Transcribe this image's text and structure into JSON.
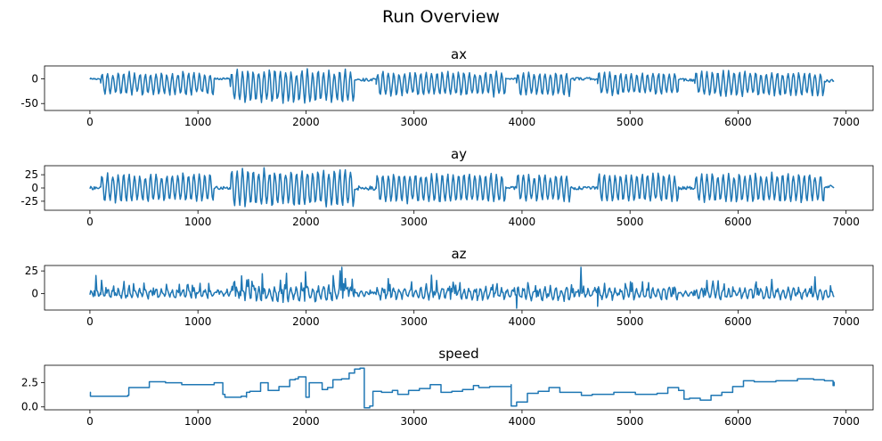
{
  "figure": {
    "title": "Run Overview"
  },
  "chart_data": [
    {
      "type": "line",
      "title": "ax",
      "xlim": [
        -420,
        7250
      ],
      "ylim": [
        -64,
        26
      ],
      "xticks": [
        0,
        1000,
        2000,
        3000,
        4000,
        5000,
        6000,
        7000
      ],
      "yticks": [
        0,
        -50
      ],
      "segments": [
        {
          "x0": 0,
          "x1": 100,
          "type": "flat",
          "level": 0,
          "noise": 2
        },
        {
          "x0": 100,
          "x1": 1150,
          "type": "osc",
          "center": -10,
          "amp": 22,
          "period": 50
        },
        {
          "x0": 1150,
          "x1": 1300,
          "type": "flat",
          "level": 0,
          "noise": 2
        },
        {
          "x0": 1300,
          "x1": 2450,
          "type": "osc",
          "center": -15,
          "amp": 32,
          "period": 50
        },
        {
          "x0": 2450,
          "x1": 2650,
          "type": "flat",
          "level": -2,
          "noise": 3
        },
        {
          "x0": 2650,
          "x1": 3850,
          "type": "osc",
          "center": -10,
          "amp": 24,
          "period": 50
        },
        {
          "x0": 3850,
          "x1": 3950,
          "type": "flat",
          "level": 0,
          "noise": 2
        },
        {
          "x0": 3950,
          "x1": 4450,
          "type": "osc",
          "center": -10,
          "amp": 22,
          "period": 50
        },
        {
          "x0": 4450,
          "x1": 4700,
          "type": "flat",
          "level": 0,
          "noise": 3
        },
        {
          "x0": 4700,
          "x1": 5450,
          "type": "osc",
          "center": -10,
          "amp": 22,
          "period": 50
        },
        {
          "x0": 5450,
          "x1": 5500,
          "type": "flat",
          "level": 0,
          "noise": 2
        },
        {
          "x0": 5500,
          "x1": 5600,
          "type": "flat",
          "level": -2,
          "noise": 3
        },
        {
          "x0": 5600,
          "x1": 6800,
          "type": "osc",
          "center": -10,
          "amp": 24,
          "period": 50
        },
        {
          "x0": 6800,
          "x1": 6890,
          "type": "flat",
          "level": -4,
          "noise": 3
        }
      ]
    },
    {
      "type": "line",
      "title": "ay",
      "xlim": [
        -420,
        7250
      ],
      "ylim": [
        -42,
        42
      ],
      "xticks": [
        0,
        1000,
        2000,
        3000,
        4000,
        5000,
        6000,
        7000
      ],
      "yticks": [
        25,
        0,
        -25
      ],
      "segments": [
        {
          "x0": 0,
          "x1": 100,
          "type": "flat",
          "level": 0,
          "noise": 3
        },
        {
          "x0": 100,
          "x1": 1150,
          "type": "osc",
          "center": 0,
          "amp": 26,
          "period": 50
        },
        {
          "x0": 1150,
          "x1": 1300,
          "type": "flat",
          "level": 0,
          "noise": 3
        },
        {
          "x0": 1300,
          "x1": 2450,
          "type": "osc",
          "center": 0,
          "amp": 34,
          "period": 50
        },
        {
          "x0": 2450,
          "x1": 2650,
          "type": "flat",
          "level": 0,
          "noise": 4
        },
        {
          "x0": 2650,
          "x1": 3850,
          "type": "osc",
          "center": 0,
          "amp": 27,
          "period": 50
        },
        {
          "x0": 3850,
          "x1": 3950,
          "type": "flat",
          "level": 0,
          "noise": 3
        },
        {
          "x0": 3950,
          "x1": 4450,
          "type": "osc",
          "center": 0,
          "amp": 26,
          "period": 50
        },
        {
          "x0": 4450,
          "x1": 4700,
          "type": "flat",
          "level": 0,
          "noise": 3
        },
        {
          "x0": 4700,
          "x1": 5450,
          "type": "osc",
          "center": 0,
          "amp": 26,
          "period": 50
        },
        {
          "x0": 5450,
          "x1": 5600,
          "type": "flat",
          "level": 0,
          "noise": 3
        },
        {
          "x0": 5600,
          "x1": 6800,
          "type": "osc",
          "center": 0,
          "amp": 26,
          "period": 50
        },
        {
          "x0": 6800,
          "x1": 6890,
          "type": "flat",
          "level": 2,
          "noise": 3
        }
      ]
    },
    {
      "type": "line",
      "title": "az",
      "xlim": [
        -420,
        7250
      ],
      "ylim": [
        -18,
        31
      ],
      "xticks": [
        0,
        1000,
        2000,
        3000,
        4000,
        5000,
        6000,
        7000
      ],
      "yticks": [
        25,
        0
      ],
      "segments": [
        {
          "x0": 0,
          "x1": 100,
          "type": "spiky",
          "center": 0,
          "amp": 8,
          "period": 50
        },
        {
          "x0": 100,
          "x1": 1150,
          "type": "spiky",
          "center": 0,
          "amp": 12,
          "period": 50
        },
        {
          "x0": 1150,
          "x1": 1300,
          "type": "spiky",
          "center": 0,
          "amp": 6,
          "period": 50
        },
        {
          "x0": 1300,
          "x1": 2450,
          "type": "spiky",
          "center": 0,
          "amp": 18,
          "period": 50
        },
        {
          "x0": 2450,
          "x1": 2650,
          "type": "spiky",
          "center": 0,
          "amp": 6,
          "period": 50
        },
        {
          "x0": 2650,
          "x1": 3850,
          "type": "spiky",
          "center": 0,
          "amp": 14,
          "period": 50
        },
        {
          "x0": 3850,
          "x1": 3950,
          "type": "spiky",
          "center": 0,
          "amp": 8,
          "period": 50
        },
        {
          "x0": 3950,
          "x1": 4450,
          "type": "spiky",
          "center": 0,
          "amp": 16,
          "period": 50
        },
        {
          "x0": 4450,
          "x1": 4700,
          "type": "spiky",
          "center": 0,
          "amp": 8,
          "period": 50
        },
        {
          "x0": 4700,
          "x1": 5450,
          "type": "spiky",
          "center": 0,
          "amp": 14,
          "period": 50
        },
        {
          "x0": 5450,
          "x1": 5600,
          "type": "spiky",
          "center": 0,
          "amp": 6,
          "period": 50
        },
        {
          "x0": 5600,
          "x1": 6800,
          "type": "spiky",
          "center": 0,
          "amp": 14,
          "period": 50
        },
        {
          "x0": 6800,
          "x1": 6890,
          "type": "spiky",
          "center": 0,
          "amp": 10,
          "period": 50
        }
      ],
      "spikes": [
        {
          "x": 60,
          "y": 20
        },
        {
          "x": 2330,
          "y": 29
        },
        {
          "x": 3950,
          "y": -16
        },
        {
          "x": 4550,
          "y": 29
        },
        {
          "x": 4700,
          "y": -14
        },
        {
          "x": 1600,
          "y": 22
        },
        {
          "x": 2000,
          "y": 24
        }
      ]
    },
    {
      "type": "line",
      "title": "speed",
      "xlim": [
        -420,
        7250
      ],
      "ylim": [
        -0.3,
        4.3
      ],
      "xticks": [
        0,
        1000,
        2000,
        3000,
        4000,
        5000,
        6000,
        7000
      ],
      "yticks": [
        2.5,
        0.0
      ],
      "steps": [
        [
          0,
          1.5
        ],
        [
          5,
          1.1
        ],
        [
          350,
          1.2
        ],
        [
          360,
          2.0
        ],
        [
          550,
          2.6
        ],
        [
          700,
          2.5
        ],
        [
          850,
          2.3
        ],
        [
          1150,
          2.5
        ],
        [
          1230,
          1.3
        ],
        [
          1250,
          1.0
        ],
        [
          1400,
          1.1
        ],
        [
          1450,
          1.0
        ],
        [
          1450,
          1.5
        ],
        [
          1480,
          1.6
        ],
        [
          1580,
          2.5
        ],
        [
          1650,
          1.7
        ],
        [
          1750,
          2.1
        ],
        [
          1850,
          2.8
        ],
        [
          1900,
          2.9
        ],
        [
          1930,
          3.1
        ],
        [
          2000,
          1.0
        ],
        [
          2030,
          2.5
        ],
        [
          2150,
          1.8
        ],
        [
          2200,
          2.0
        ],
        [
          2250,
          2.8
        ],
        [
          2330,
          2.9
        ],
        [
          2400,
          3.5
        ],
        [
          2450,
          3.9
        ],
        [
          2500,
          4.0
        ],
        [
          2540,
          -0.1
        ],
        [
          2590,
          0.1
        ],
        [
          2620,
          1.6
        ],
        [
          2700,
          1.5
        ],
        [
          2800,
          1.7
        ],
        [
          2850,
          1.3
        ],
        [
          2950,
          1.7
        ],
        [
          3050,
          1.9
        ],
        [
          3150,
          2.3
        ],
        [
          3250,
          1.5
        ],
        [
          3350,
          1.6
        ],
        [
          3450,
          1.8
        ],
        [
          3550,
          2.2
        ],
        [
          3600,
          2.0
        ],
        [
          3700,
          2.1
        ],
        [
          3900,
          2.3
        ],
        [
          3900,
          0.1
        ],
        [
          3950,
          0.5
        ],
        [
          4050,
          1.4
        ],
        [
          4150,
          1.6
        ],
        [
          4250,
          2.0
        ],
        [
          4350,
          1.5
        ],
        [
          4550,
          1.2
        ],
        [
          4650,
          1.3
        ],
        [
          4850,
          1.5
        ],
        [
          5050,
          1.3
        ],
        [
          5250,
          1.4
        ],
        [
          5350,
          2.0
        ],
        [
          5450,
          1.7
        ],
        [
          5500,
          0.8
        ],
        [
          5550,
          0.9
        ],
        [
          5650,
          0.7
        ],
        [
          5750,
          1.2
        ],
        [
          5850,
          1.5
        ],
        [
          5950,
          2.1
        ],
        [
          6050,
          2.7
        ],
        [
          6150,
          2.6
        ],
        [
          6350,
          2.7
        ],
        [
          6550,
          2.9
        ],
        [
          6700,
          2.8
        ],
        [
          6800,
          2.7
        ],
        [
          6880,
          2.2
        ],
        [
          6890,
          2.6
        ]
      ]
    }
  ]
}
